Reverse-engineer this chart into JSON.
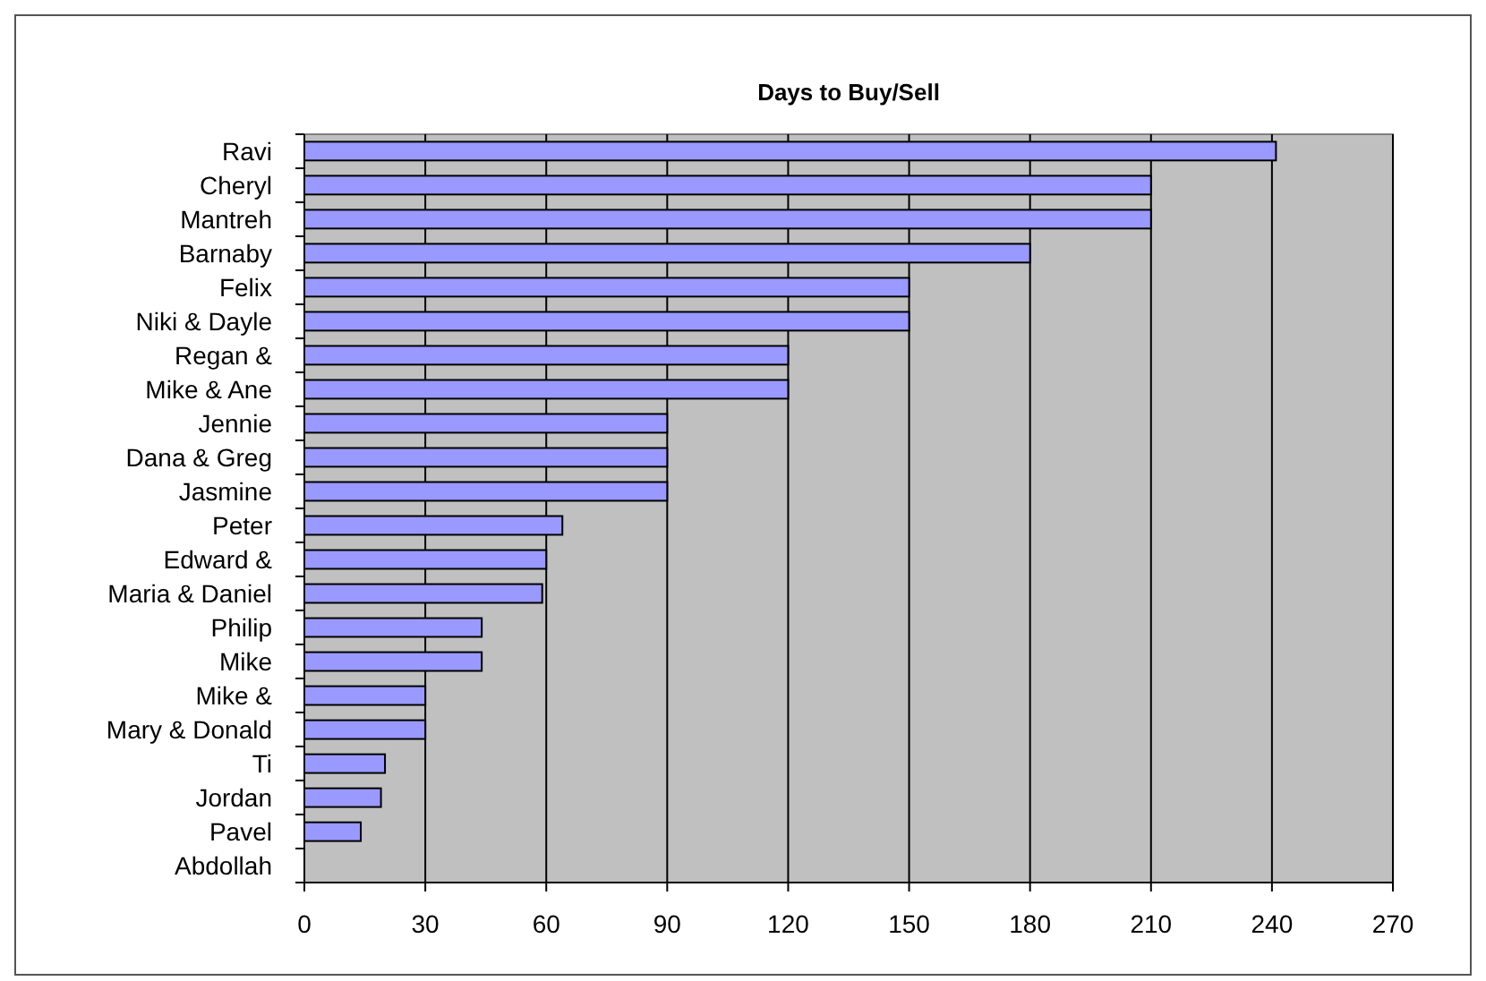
{
  "chart_data": {
    "type": "bar",
    "orientation": "horizontal",
    "title": "Days to Buy/Sell",
    "categories": [
      "Ravi",
      "Cheryl",
      "Mantreh",
      "Barnaby",
      "Felix",
      "Niki & Dayle",
      "Regan &",
      "Mike & Ane",
      "Jennie",
      "Dana & Greg",
      "Jasmine",
      "Peter",
      "Edward &",
      "Maria & Daniel",
      "Philip",
      "Mike",
      "Mike &",
      "Mary & Donald",
      "Ti",
      "Jordan",
      "Pavel",
      "Abdollah"
    ],
    "values": [
      241,
      210,
      210,
      180,
      150,
      150,
      120,
      120,
      90,
      90,
      90,
      64,
      60,
      59,
      44,
      44,
      30,
      30,
      20,
      19,
      14,
      0
    ],
    "color": "#9999ff",
    "xlim": [
      0,
      270
    ],
    "xticks": [
      0,
      30,
      60,
      90,
      120,
      150,
      180,
      210,
      240,
      270
    ],
    "grid": "x"
  }
}
